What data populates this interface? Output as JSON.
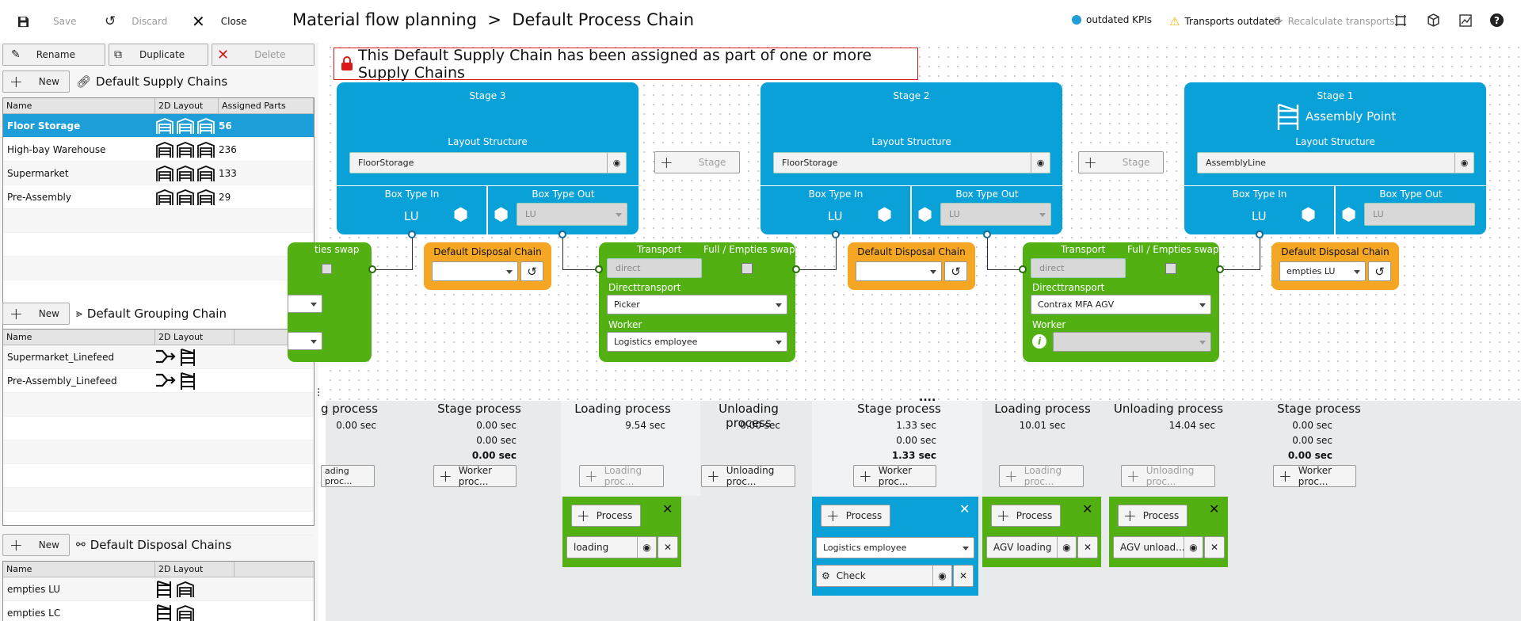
{
  "toolbar": {
    "save": "Save",
    "discard": "Discard",
    "close": "Close",
    "title": "Material flow planning",
    "breadcrumb_sep": ">",
    "subtitle": "Default Process Chain",
    "outdated_kpis": "outdated KPIs",
    "transports_outdated": "Transports outdated",
    "recalc": "Recalculate transports"
  },
  "left": {
    "rename": "Rename",
    "duplicate": "Duplicate",
    "delete": "Delete",
    "new": "New",
    "supply_title": "Default Supply Chains",
    "supply_headers": [
      "Name",
      "2D Layout",
      "Assigned Parts"
    ],
    "supply_rows": [
      {
        "name": "Floor Storage",
        "parts": "56"
      },
      {
        "name": "High-bay Warehouse",
        "parts": "236"
      },
      {
        "name": "Supermarket",
        "parts": "133"
      },
      {
        "name": "Pre-Assembly",
        "parts": "29"
      }
    ],
    "grouping_title": "Default Grouping Chain",
    "grouping_headers": [
      "Name",
      "2D Layout"
    ],
    "grouping_rows": [
      "Supermarket_Linefeed",
      "Pre-Assembly_Linefeed"
    ],
    "disposal_title": "Default Disposal Chains",
    "disposal_headers": [
      "Name",
      "2D Layout"
    ],
    "disposal_rows": [
      "empties LU",
      "empties LC"
    ]
  },
  "canvas": {
    "banner": "This Default Supply Chain has been assigned as part of one or more Supply Chains",
    "layout_structure": "Layout Structure",
    "box_in": "Box Type In",
    "box_out": "Box Type Out",
    "lu": "LU",
    "stage_btn": "Stage",
    "stages": [
      {
        "title": "Stage 3",
        "layout": "FloorStorage"
      },
      {
        "title": "Stage 2",
        "layout": "FloorStorage"
      },
      {
        "title": "Stage 1",
        "sub": "Assembly Point",
        "layout": "AssemblyLine"
      }
    ],
    "transport": "Transport",
    "full_empties": "Full / Empties swap",
    "partial_swap": "ties swap",
    "directtransport": "Directtransport",
    "worker": "Worker",
    "direct": "direct",
    "t1_vehicle": "Picker",
    "t1_worker": "Logistics employee",
    "t2_vehicle": "Contrax MFA AGV",
    "disposal": "Default Disposal Chain",
    "disposal_value": "empties LU",
    "processes": {
      "stage": "Stage process",
      "loading": "Loading process",
      "unloading": "Unloading process",
      "partial": "g process"
    },
    "times": {
      "zero": "0.00 sec",
      "t954": "9.54 sec",
      "t133": "1.33 sec",
      "t1001": "10.01 sec",
      "t1404": "14.04 sec"
    },
    "btns": {
      "loading": "Loading proc...",
      "unloading": "Unloading proc...",
      "worker": "Worker proc...",
      "partial": "ading proc...",
      "process": "Process"
    },
    "items": {
      "loading": "loading",
      "logistics": "Logistics employee",
      "check": "Check",
      "agv_loading": "AGV loading",
      "agv_unload": "AGV unload..."
    },
    "dots": "...."
  },
  "colors": {
    "stage": "#0aa0d8",
    "transport": "#52b012",
    "disposal": "#f5a623",
    "selected": "#1d9ed8"
  }
}
